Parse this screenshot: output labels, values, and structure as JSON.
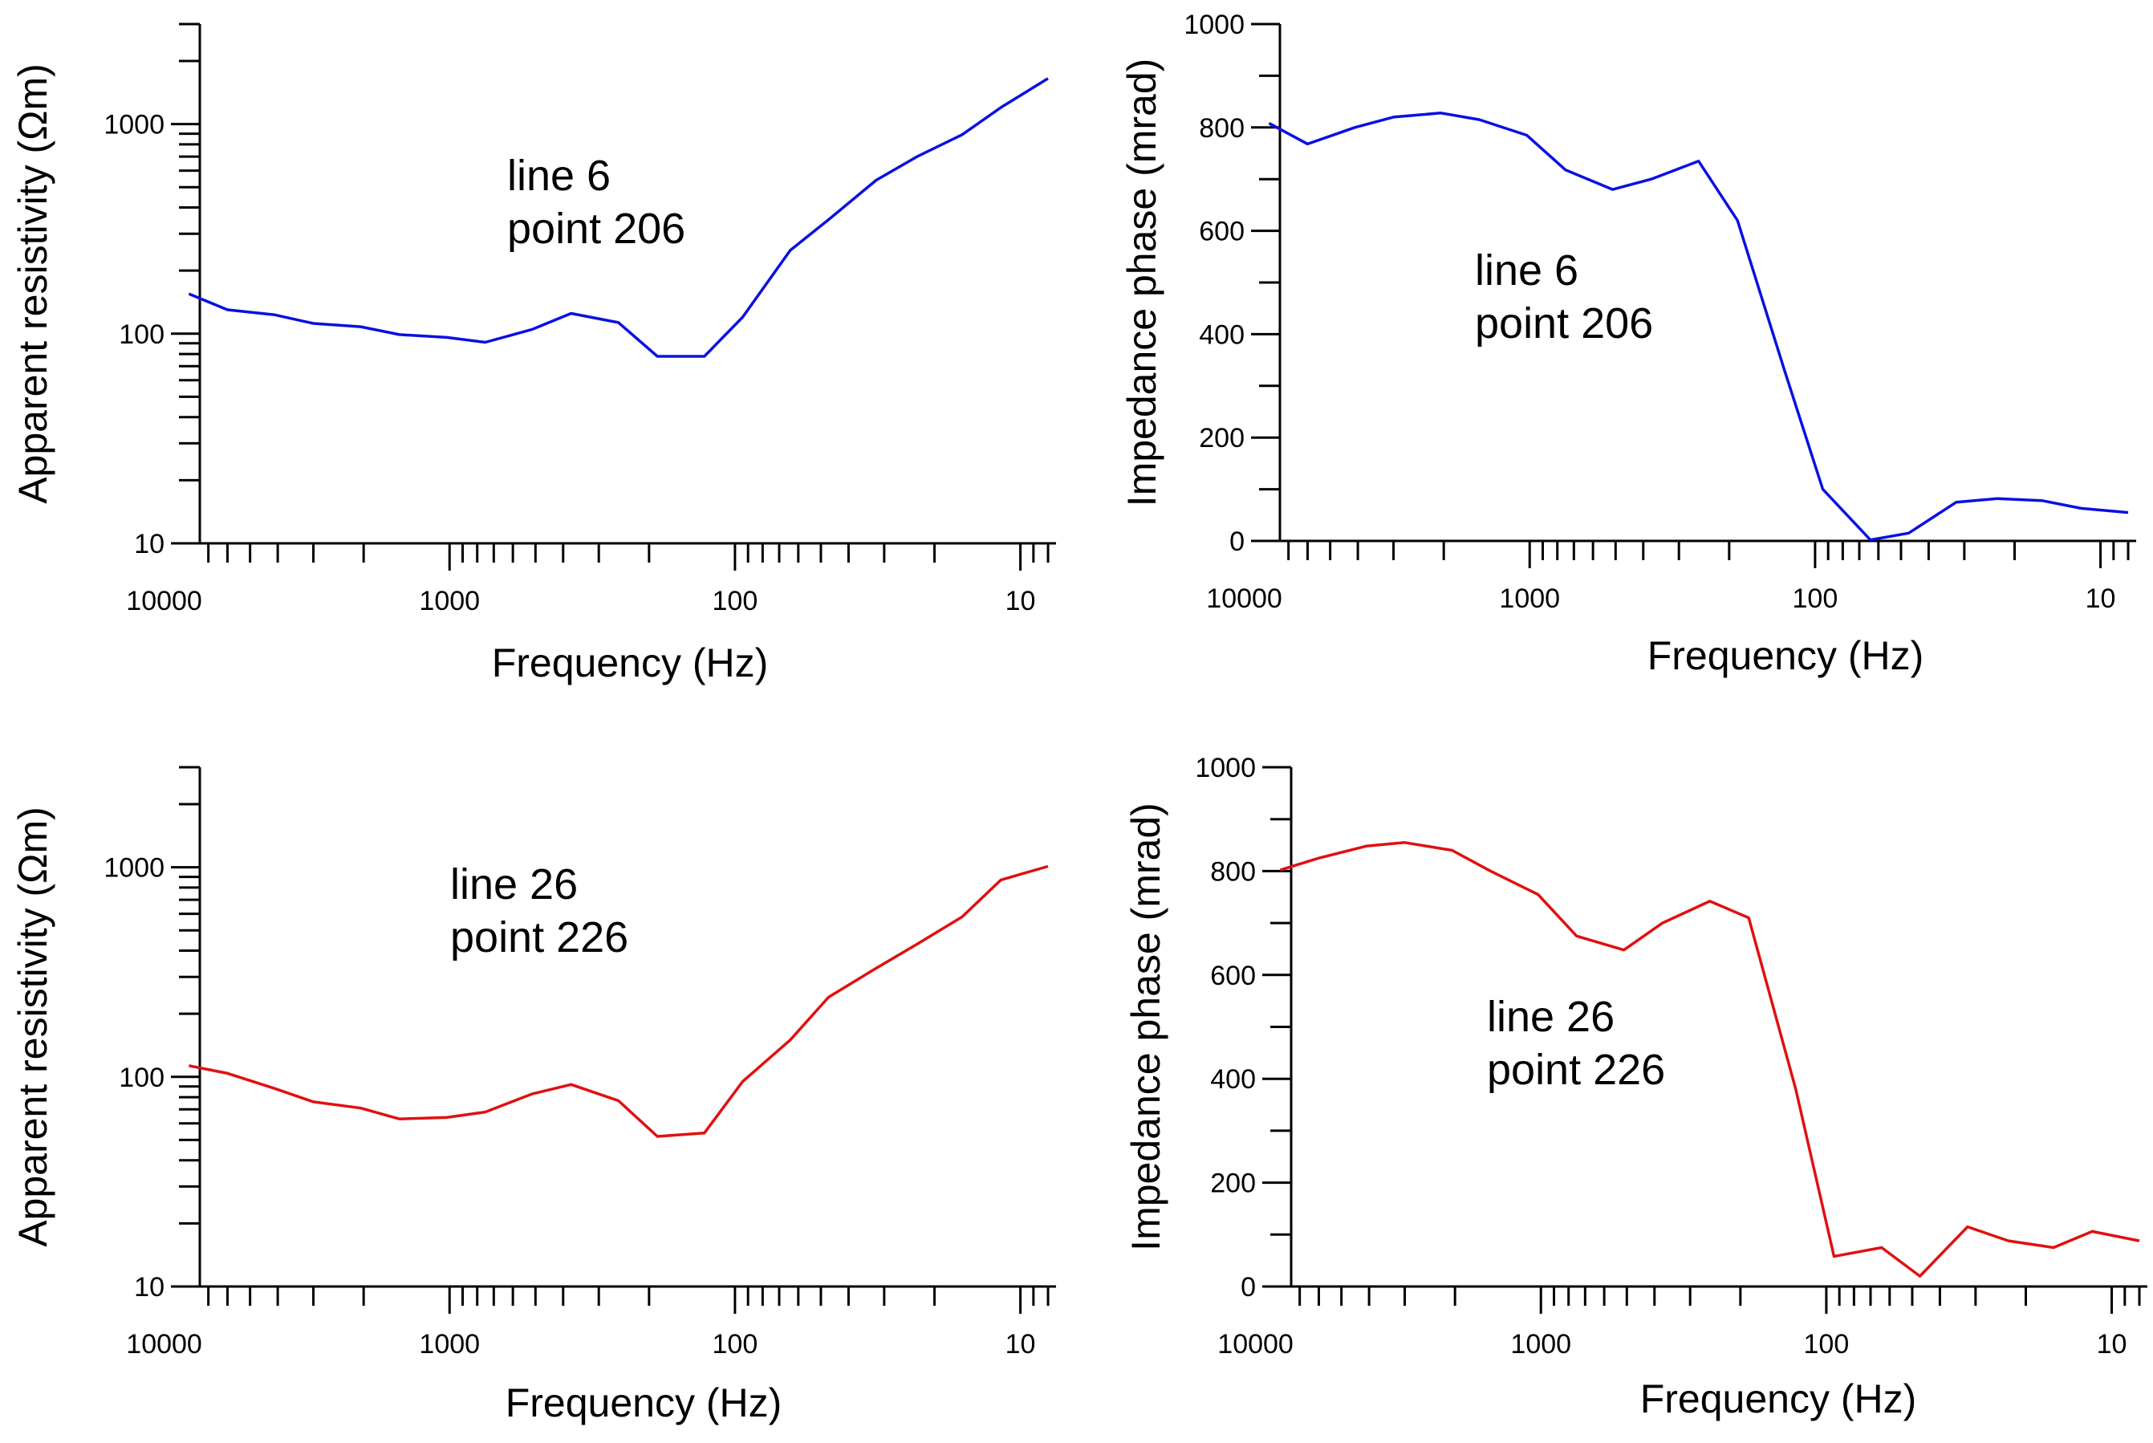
{
  "chart_data": [
    {
      "type": "line",
      "id": "rho-206",
      "xlabel": "Frequency (Hz)",
      "ylabel": "Apparent resistivity (Ωm)",
      "x_scale": "log-reversed",
      "y_scale": "log",
      "xlim": [
        7500,
        7.5
      ],
      "ylim": [
        10,
        3000
      ],
      "x_tick_labels": [
        {
          "value": 10000,
          "label": "10000"
        },
        {
          "value": 1000,
          "label": "1000"
        },
        {
          "value": 100,
          "label": "100"
        },
        {
          "value": 10,
          "label": "10"
        }
      ],
      "y_tick_labels": [
        {
          "value": 10,
          "label": "10"
        },
        {
          "value": 100,
          "label": "100"
        },
        {
          "value": 1000,
          "label": "1000"
        }
      ],
      "annotation": [
        "line 6",
        "point 206"
      ],
      "series": [
        {
          "name": "line 6 point 206",
          "color": "#0a10e0",
          "x": [
            8192,
            6000,
            4096,
            3000,
            2048,
            1500,
            1024,
            750,
            512,
            375,
            256,
            187,
            128,
            94,
            64,
            47,
            32,
            23,
            16,
            11.7,
            8
          ],
          "y": [
            155,
            130,
            123,
            112,
            108,
            99,
            96,
            91,
            105,
            125,
            113,
            78,
            78,
            120,
            250,
            350,
            540,
            700,
            890,
            1200,
            1650
          ]
        }
      ]
    },
    {
      "type": "line",
      "id": "phase-206",
      "xlabel": "Frequency (Hz)",
      "ylabel": "Impedance phase (mrad)",
      "x_scale": "log-reversed",
      "y_scale": "linear",
      "xlim": [
        7500,
        7.5
      ],
      "ylim": [
        0,
        1000
      ],
      "x_tick_labels": [
        {
          "value": 10000,
          "label": "10000"
        },
        {
          "value": 1000,
          "label": "1000"
        },
        {
          "value": 100,
          "label": "100"
        },
        {
          "value": 10,
          "label": "10"
        }
      ],
      "y_tick_labels": [
        {
          "value": 0,
          "label": "0"
        },
        {
          "value": 200,
          "label": "200"
        },
        {
          "value": 400,
          "label": "400"
        },
        {
          "value": 600,
          "label": "600"
        },
        {
          "value": 800,
          "label": "800"
        },
        {
          "value": 1000,
          "label": "1000"
        }
      ],
      "annotation": [
        "line 6",
        "point 206"
      ],
      "series": [
        {
          "name": "line 6 point 206",
          "color": "#0a10e0",
          "x": [
            8192,
            6000,
            4096,
            3000,
            2048,
            1500,
            1024,
            750,
            512,
            375,
            256,
            187,
            128,
            94,
            64,
            47,
            32,
            23,
            16,
            11.7,
            8
          ],
          "y": [
            808,
            768,
            800,
            820,
            828,
            815,
            785,
            718,
            680,
            700,
            735,
            620,
            330,
            100,
            2,
            15,
            75,
            82,
            78,
            63,
            55
          ]
        }
      ]
    },
    {
      "type": "line",
      "id": "rho-226",
      "xlabel": "Frequency (Hz)",
      "ylabel": "Apparent resistivity (Ωm)",
      "x_scale": "log-reversed",
      "y_scale": "log",
      "xlim": [
        7500,
        7.5
      ],
      "ylim": [
        10,
        3000
      ],
      "x_tick_labels": [
        {
          "value": 10000,
          "label": "10000"
        },
        {
          "value": 1000,
          "label": "1000"
        },
        {
          "value": 100,
          "label": "100"
        },
        {
          "value": 10,
          "label": "10"
        }
      ],
      "y_tick_labels": [
        {
          "value": 10,
          "label": "10"
        },
        {
          "value": 100,
          "label": "100"
        },
        {
          "value": 1000,
          "label": "1000"
        }
      ],
      "annotation": [
        "line 26",
        "point 226"
      ],
      "series": [
        {
          "name": "line 26 point 226",
          "color": "#e01010",
          "x": [
            8192,
            6000,
            4096,
            3000,
            2048,
            1500,
            1024,
            750,
            512,
            375,
            256,
            187,
            128,
            94,
            64,
            47,
            32,
            23,
            16,
            11.7,
            8
          ],
          "y": [
            113,
            104,
            88,
            76,
            71,
            63,
            64,
            68,
            83,
            92,
            77,
            52,
            54,
            95,
            150,
            240,
            330,
            430,
            580,
            870,
            1010
          ]
        }
      ]
    },
    {
      "type": "line",
      "id": "phase-226",
      "xlabel": "Frequency (Hz)",
      "ylabel": "Impedance phase (mrad)",
      "x_scale": "log-reversed",
      "y_scale": "linear",
      "xlim": [
        7500,
        7.5
      ],
      "ylim": [
        0,
        1000
      ],
      "x_tick_labels": [
        {
          "value": 10000,
          "label": "10000"
        },
        {
          "value": 1000,
          "label": "1000"
        },
        {
          "value": 100,
          "label": "100"
        },
        {
          "value": 10,
          "label": "10"
        }
      ],
      "y_tick_labels": [
        {
          "value": 0,
          "label": "0"
        },
        {
          "value": 200,
          "label": "200"
        },
        {
          "value": 400,
          "label": "400"
        },
        {
          "value": 600,
          "label": "600"
        },
        {
          "value": 800,
          "label": "800"
        },
        {
          "value": 1000,
          "label": "1000"
        }
      ],
      "annotation": [
        "line 26",
        "point 226"
      ],
      "series": [
        {
          "name": "line 26 point 226",
          "color": "#e01010",
          "x": [
            8192,
            6000,
            4096,
            3000,
            2048,
            1500,
            1024,
            750,
            512,
            375,
            256,
            187,
            128,
            94,
            64,
            47,
            32,
            23,
            16,
            11.7,
            8
          ],
          "y": [
            802,
            825,
            848,
            855,
            840,
            800,
            755,
            675,
            648,
            700,
            742,
            710,
            380,
            58,
            75,
            20,
            115,
            88,
            75,
            106,
            88
          ]
        }
      ]
    }
  ]
}
